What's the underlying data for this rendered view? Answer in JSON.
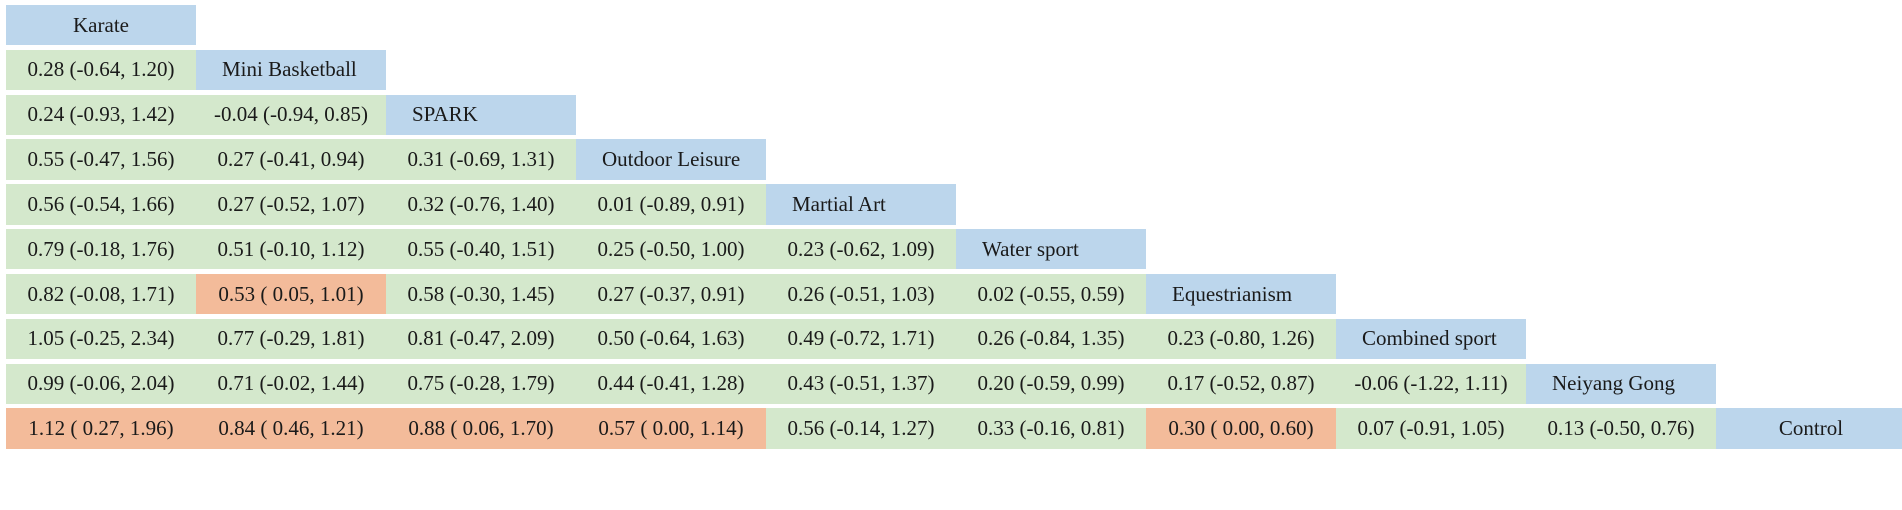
{
  "table": {
    "rows": [
      {
        "treatment": "Karate",
        "cells": []
      },
      {
        "treatment": "Mini Basketball",
        "cells": [
          {
            "text": "0.28 (-0.64, 1.20)",
            "significant": false
          }
        ]
      },
      {
        "treatment": "SPARK",
        "cells": [
          {
            "text": "0.24 (-0.93, 1.42)",
            "significant": false
          },
          {
            "text": "-0.04 (-0.94, 0.85)",
            "significant": false
          }
        ]
      },
      {
        "treatment": "Outdoor Leisure",
        "cells": [
          {
            "text": "0.55 (-0.47, 1.56)",
            "significant": false
          },
          {
            "text": "0.27 (-0.41, 0.94)",
            "significant": false
          },
          {
            "text": "0.31 (-0.69, 1.31)",
            "significant": false
          }
        ]
      },
      {
        "treatment": "Martial Art",
        "cells": [
          {
            "text": "0.56 (-0.54, 1.66)",
            "significant": false
          },
          {
            "text": "0.27 (-0.52, 1.07)",
            "significant": false
          },
          {
            "text": "0.32 (-0.76, 1.40)",
            "significant": false
          },
          {
            "text": "0.01 (-0.89, 0.91)",
            "significant": false
          }
        ]
      },
      {
        "treatment": "Water sport",
        "cells": [
          {
            "text": "0.79 (-0.18, 1.76)",
            "significant": false
          },
          {
            "text": "0.51 (-0.10, 1.12)",
            "significant": false
          },
          {
            "text": "0.55 (-0.40, 1.51)",
            "significant": false
          },
          {
            "text": "0.25 (-0.50, 1.00)",
            "significant": false
          },
          {
            "text": "0.23 (-0.62, 1.09)",
            "significant": false
          }
        ]
      },
      {
        "treatment": "Equestrianism",
        "cells": [
          {
            "text": "0.82 (-0.08, 1.71)",
            "significant": false
          },
          {
            "text": "0.53 ( 0.05, 1.01)",
            "significant": true
          },
          {
            "text": "0.58 (-0.30, 1.45)",
            "significant": false
          },
          {
            "text": "0.27 (-0.37, 0.91)",
            "significant": false
          },
          {
            "text": "0.26 (-0.51, 1.03)",
            "significant": false
          },
          {
            "text": "0.02 (-0.55, 0.59)",
            "significant": false
          }
        ]
      },
      {
        "treatment": "Combined sport",
        "cells": [
          {
            "text": "1.05 (-0.25, 2.34)",
            "significant": false
          },
          {
            "text": "0.77 (-0.29, 1.81)",
            "significant": false
          },
          {
            "text": "0.81 (-0.47, 2.09)",
            "significant": false
          },
          {
            "text": "0.50 (-0.64, 1.63)",
            "significant": false
          },
          {
            "text": "0.49 (-0.72, 1.71)",
            "significant": false
          },
          {
            "text": "0.26 (-0.84, 1.35)",
            "significant": false
          },
          {
            "text": "0.23 (-0.80, 1.26)",
            "significant": false
          }
        ]
      },
      {
        "treatment": "Neiyang Gong",
        "cells": [
          {
            "text": "0.99 (-0.06, 2.04)",
            "significant": false
          },
          {
            "text": "0.71 (-0.02, 1.44)",
            "significant": false
          },
          {
            "text": "0.75 (-0.28, 1.79)",
            "significant": false
          },
          {
            "text": "0.44 (-0.41, 1.28)",
            "significant": false
          },
          {
            "text": "0.43 (-0.51, 1.37)",
            "significant": false
          },
          {
            "text": "0.20 (-0.59, 0.99)",
            "significant": false
          },
          {
            "text": "0.17 (-0.52, 0.87)",
            "significant": false
          },
          {
            "text": "-0.06 (-1.22, 1.11)",
            "significant": false
          }
        ]
      },
      {
        "treatment": "Control",
        "cells": [
          {
            "text": "1.12 ( 0.27, 1.96)",
            "significant": true
          },
          {
            "text": "0.84 ( 0.46, 1.21)",
            "significant": true
          },
          {
            "text": "0.88 ( 0.06, 1.70)",
            "significant": true
          },
          {
            "text": "0.57 ( 0.00, 1.14)",
            "significant": true
          },
          {
            "text": "0.56 (-0.14, 1.27)",
            "significant": false
          },
          {
            "text": "0.33 (-0.16, 0.81)",
            "significant": false
          },
          {
            "text": "0.30 ( 0.00, 0.60)",
            "significant": true
          },
          {
            "text": "0.07 (-0.91, 1.05)",
            "significant": false
          },
          {
            "text": "0.13 (-0.50, 0.76)",
            "significant": false
          }
        ]
      }
    ]
  },
  "colors": {
    "treatment_header": "#bcd6ec",
    "non_significant": "#d4e8cc",
    "significant": "#f3bb9a"
  }
}
